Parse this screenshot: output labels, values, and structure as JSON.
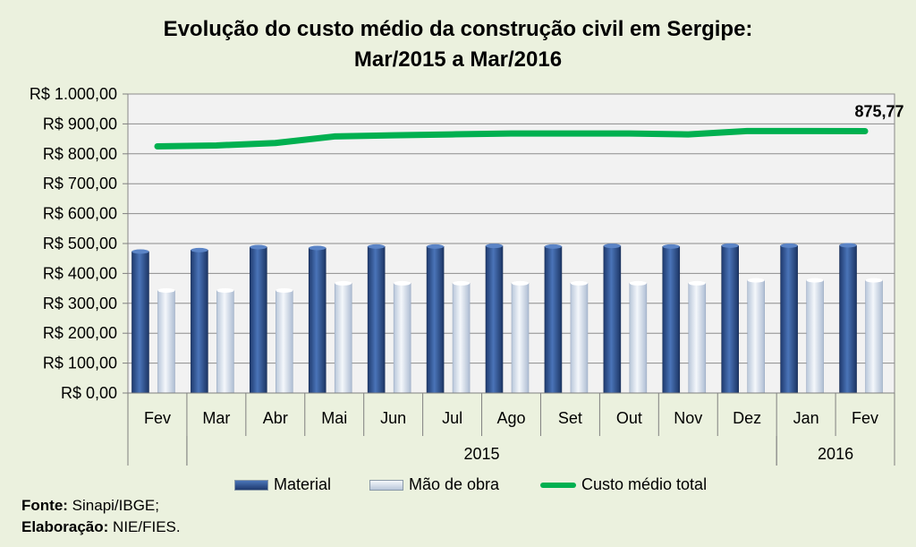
{
  "title_line1": "Evolução do custo médio da construção civil em Sergipe:",
  "title_line2": "Mar/2015 a Mar/2016",
  "colors": {
    "background": "#ebf1de",
    "plot_background": "#f2f2f2",
    "material": "#2e4f8c",
    "mao_de_obra": "#dbe4f0",
    "custo_total": "#00b050"
  },
  "legend": {
    "material": "Material",
    "mao_de_obra": "Mão de obra",
    "custo_total": "Custo médio total"
  },
  "footnotes": {
    "fonte_label": "Fonte:",
    "fonte_value": "Sinapi/IBGE;",
    "elaboracao_label": "Elaboração:",
    "elaboracao_value": "NIE/FIES."
  },
  "chart_data": {
    "type": "bar",
    "title": "Evolução do custo médio da construção civil em Sergipe: Mar/2015 a Mar/2016",
    "categories": [
      "Fev",
      "Mar",
      "Abr",
      "Mai",
      "Jun",
      "Jul",
      "Ago",
      "Set",
      "Out",
      "Nov",
      "Dez",
      "Jan",
      "Fev"
    ],
    "year_groups": [
      {
        "label": "",
        "start": 0,
        "end": 0
      },
      {
        "label": "2015",
        "start": 1,
        "end": 10
      },
      {
        "label": "2016",
        "start": 11,
        "end": 12
      }
    ],
    "series": [
      {
        "name": "Material",
        "type": "bar",
        "values": [
          473,
          478,
          488,
          485,
          490,
          490,
          492,
          490,
          492,
          490,
          493,
          493,
          494
        ]
      },
      {
        "name": "Mão de obra",
        "type": "bar",
        "values": [
          343,
          343,
          343,
          367,
          367,
          367,
          367,
          367,
          367,
          367,
          377,
          377,
          377
        ]
      },
      {
        "name": "Custo médio total",
        "type": "line",
        "values": [
          825,
          828,
          836,
          858,
          862,
          865,
          868,
          868,
          868,
          865,
          876,
          876,
          875.77
        ]
      }
    ],
    "data_labels": [
      {
        "series": "Custo médio total",
        "index": 12,
        "text": "875,77"
      }
    ],
    "ylim": [
      0,
      1000
    ],
    "yticks": [
      0,
      100,
      200,
      300,
      400,
      500,
      600,
      700,
      800,
      900,
      1000
    ],
    "ytick_labels": [
      "R$ 0,00",
      "R$ 100,00",
      "R$ 200,00",
      "R$ 300,00",
      "R$ 400,00",
      "R$ 500,00",
      "R$ 600,00",
      "R$ 700,00",
      "R$ 800,00",
      "R$ 900,00",
      "R$ 1.000,00"
    ],
    "grid": true,
    "legend_position": "bottom"
  }
}
